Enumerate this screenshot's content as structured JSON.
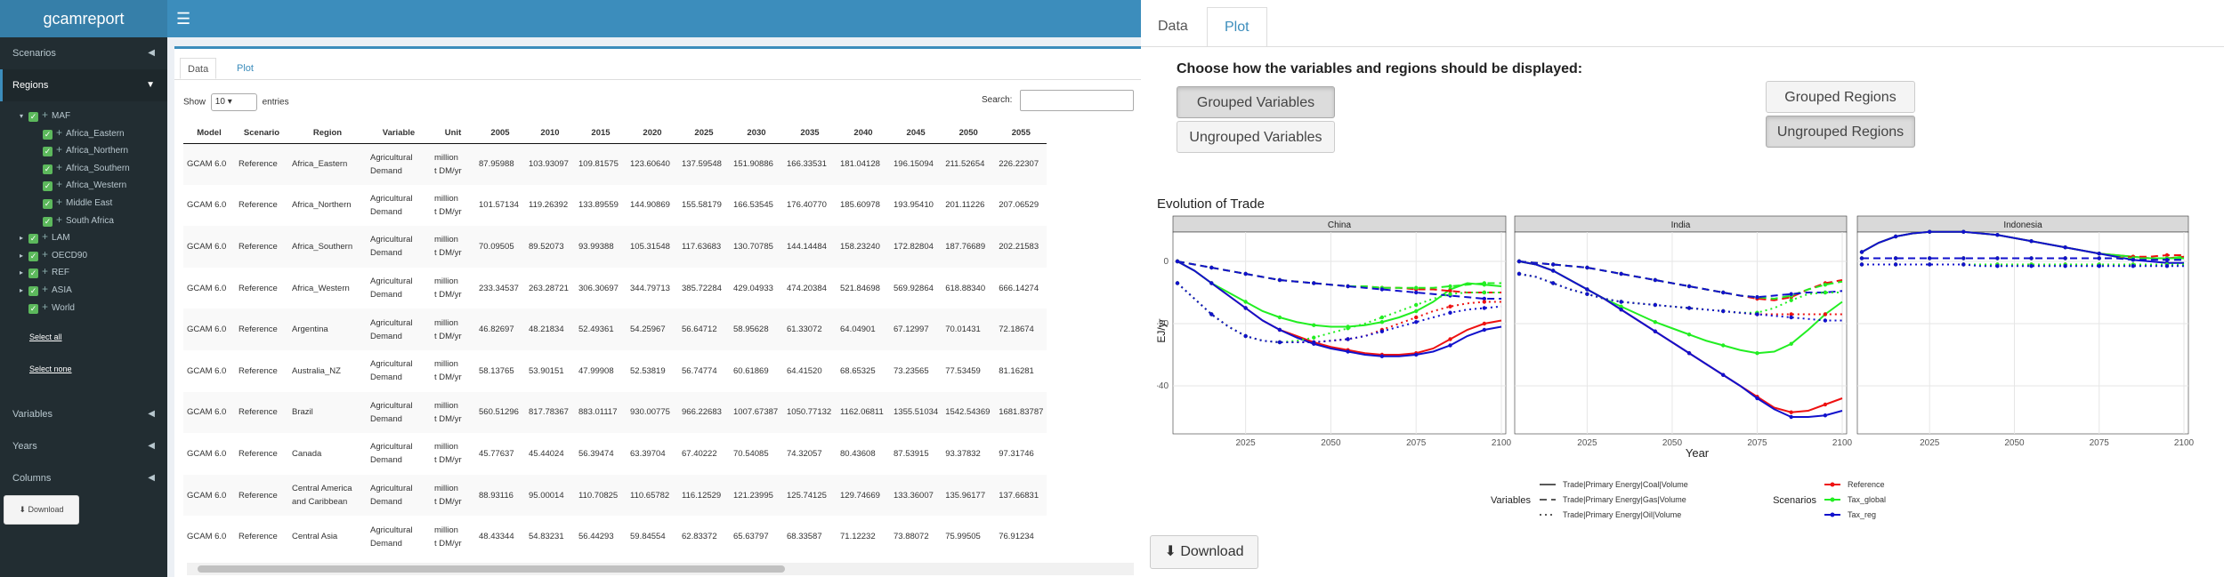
{
  "app": {
    "title": "gcamreport"
  },
  "sidebar": {
    "menus": [
      {
        "label": "Scenarios"
      },
      {
        "label": "Regions"
      },
      {
        "label": "Variables"
      },
      {
        "label": "Years"
      },
      {
        "label": "Columns"
      }
    ],
    "tree": [
      {
        "label": "MAF",
        "level": 1,
        "expanded": true
      },
      {
        "label": "Africa_Eastern",
        "level": 2
      },
      {
        "label": "Africa_Northern",
        "level": 2
      },
      {
        "label": "Africa_Southern",
        "level": 2
      },
      {
        "label": "Africa_Western",
        "level": 2
      },
      {
        "label": "Middle East",
        "level": 2
      },
      {
        "label": "South Africa",
        "level": 2
      },
      {
        "label": "LAM",
        "level": 1
      },
      {
        "label": "OECD90",
        "level": 1
      },
      {
        "label": "REF",
        "level": 1
      },
      {
        "label": "ASIA",
        "level": 1
      },
      {
        "label": "World",
        "level": 1,
        "leaf": true
      }
    ],
    "select_all": "Select all",
    "select_none": "Select none",
    "download_label": "Download"
  },
  "left_tabs": {
    "data": "Data",
    "plot": "Plot"
  },
  "table_controls": {
    "show_label": "Show",
    "show_value": "10",
    "entries_label": "entries",
    "search_label": "Search:"
  },
  "table": {
    "headers": [
      "Model",
      "Scenario",
      "Region",
      "Variable",
      "Unit",
      "2005",
      "2010",
      "2015",
      "2020",
      "2025",
      "2030",
      "2035",
      "2040",
      "2045",
      "2050",
      "2055"
    ],
    "rows": [
      [
        "GCAM 6.0",
        "Reference",
        "Africa_Eastern",
        "Agricultural\nDemand",
        "million\nt DM/yr",
        "87.95988",
        "103.93097",
        "109.81575",
        "123.60640",
        "137.59548",
        "151.90886",
        "166.33531",
        "181.04128",
        "196.15094",
        "211.52654",
        "226.22307"
      ],
      [
        "GCAM 6.0",
        "Reference",
        "Africa_Northern",
        "Agricultural\nDemand",
        "million\nt DM/yr",
        "101.57134",
        "119.26392",
        "133.89559",
        "144.90869",
        "155.58179",
        "166.53545",
        "176.40770",
        "185.60978",
        "193.95410",
        "201.11226",
        "207.06529"
      ],
      [
        "GCAM 6.0",
        "Reference",
        "Africa_Southern",
        "Agricultural\nDemand",
        "million\nt DM/yr",
        "70.09505",
        "89.52073",
        "93.99388",
        "105.31548",
        "117.63683",
        "130.70785",
        "144.14484",
        "158.23240",
        "172.82804",
        "187.76689",
        "202.21583"
      ],
      [
        "GCAM 6.0",
        "Reference",
        "Africa_Western",
        "Agricultural\nDemand",
        "million\nt DM/yr",
        "233.34537",
        "263.28721",
        "306.30697",
        "344.79713",
        "385.72284",
        "429.04933",
        "474.20384",
        "521.84698",
        "569.92864",
        "618.88340",
        "666.14274"
      ],
      [
        "GCAM 6.0",
        "Reference",
        "Argentina",
        "Agricultural\nDemand",
        "million\nt DM/yr",
        "46.82697",
        "48.21834",
        "52.49361",
        "54.25967",
        "56.64712",
        "58.95628",
        "61.33072",
        "64.04901",
        "67.12997",
        "70.01431",
        "72.18674"
      ],
      [
        "GCAM 6.0",
        "Reference",
        "Australia_NZ",
        "Agricultural\nDemand",
        "million\nt DM/yr",
        "58.13765",
        "53.90151",
        "47.99908",
        "52.53819",
        "56.74774",
        "60.61869",
        "64.41520",
        "68.65325",
        "73.23565",
        "77.53459",
        "81.16281"
      ],
      [
        "GCAM 6.0",
        "Reference",
        "Brazil",
        "Agricultural\nDemand",
        "million\nt DM/yr",
        "560.51296",
        "817.78367",
        "883.01117",
        "930.00775",
        "966.22683",
        "1007.67387",
        "1050.77132",
        "1162.06811",
        "1355.51034",
        "1542.54369",
        "1681.83787"
      ],
      [
        "GCAM 6.0",
        "Reference",
        "Canada",
        "Agricultural\nDemand",
        "million\nt DM/yr",
        "45.77637",
        "45.44024",
        "56.39474",
        "63.39704",
        "67.40222",
        "70.54085",
        "74.32057",
        "80.43608",
        "87.53915",
        "93.37832",
        "97.31746"
      ],
      [
        "GCAM 6.0",
        "Reference",
        "Central America\nand Caribbean",
        "Agricultural\nDemand",
        "million\nt DM/yr",
        "88.93116",
        "95.00014",
        "110.70825",
        "110.65782",
        "116.12529",
        "121.23995",
        "125.74125",
        "129.74669",
        "133.36007",
        "135.96177",
        "137.66831"
      ],
      [
        "GCAM 6.0",
        "Reference",
        "Central Asia",
        "Agricultural\nDemand",
        "million\nt DM/yr",
        "48.43344",
        "54.83231",
        "56.44293",
        "59.84554",
        "62.83372",
        "65.63797",
        "68.33587",
        "71.12232",
        "73.88072",
        "75.99505",
        "76.91234"
      ]
    ]
  },
  "right_tabs": {
    "data": "Data",
    "plot": "Plot"
  },
  "controls": {
    "heading": "Choose how the variables and regions should be displayed:",
    "grouped_variables": "Grouped Variables",
    "ungrouped_variables": "Ungrouped Variables",
    "grouped_regions": "Grouped Regions",
    "ungrouped_regions": "Ungrouped Regions",
    "variables_mode": "Grouped Variables",
    "regions_mode": "Ungrouped Regions"
  },
  "download_label": "Download",
  "chart_data": {
    "type": "line",
    "title": "Evolution of Trade",
    "xlabel": "Year",
    "ylabel": "EJ/yr",
    "xlim": [
      2005,
      2100
    ],
    "ylim": [
      -54,
      8
    ],
    "x_ticks": [
      2025,
      2050,
      2075,
      2100
    ],
    "y_ticks": [
      0,
      -20,
      -40
    ],
    "x": [
      2005,
      2010,
      2015,
      2020,
      2025,
      2030,
      2035,
      2040,
      2045,
      2050,
      2055,
      2060,
      2065,
      2070,
      2075,
      2080,
      2085,
      2090,
      2095,
      2100
    ],
    "facets": [
      "China",
      "India",
      "Indonesia"
    ],
    "legend_variables_title": "Variables",
    "legend_scenarios_title": "Scenarios",
    "variables": [
      {
        "name": "Trade|Primary Energy|Coal|Volume",
        "dash": "solid"
      },
      {
        "name": "Trade|Primary Energy|Gas|Volume",
        "dash": "dashed"
      },
      {
        "name": "Trade|Primary Energy|Oil|Volume",
        "dash": "dotted"
      }
    ],
    "scenarios": [
      {
        "name": "Reference",
        "color": "#ee1111"
      },
      {
        "name": "Tax_global",
        "color": "#22ee22"
      },
      {
        "name": "Tax_reg",
        "color": "#1111cc"
      }
    ],
    "series": [
      {
        "facet": "China",
        "scenario": "Reference",
        "variable": "Trade|Primary Energy|Coal|Volume",
        "values": [
          0,
          -3,
          -7,
          -11,
          -15,
          -19,
          -22,
          -24,
          -26,
          -27.5,
          -28.5,
          -29.5,
          -30,
          -30,
          -29.5,
          -28,
          -25,
          -22,
          -20,
          -19
        ]
      },
      {
        "facet": "China",
        "scenario": "Tax_global",
        "variable": "Trade|Primary Energy|Coal|Volume",
        "values": [
          0,
          -3,
          -7,
          -10,
          -13,
          -16,
          -18,
          -19.5,
          -20.5,
          -21,
          -21,
          -20.5,
          -19.5,
          -18,
          -16,
          -13,
          -9,
          -7,
          -7.5,
          -8
        ]
      },
      {
        "facet": "China",
        "scenario": "Tax_reg",
        "variable": "Trade|Primary Energy|Coal|Volume",
        "values": [
          0,
          -3,
          -7,
          -11,
          -15,
          -19,
          -22,
          -24.5,
          -26.5,
          -28,
          -29,
          -30,
          -30.5,
          -30.5,
          -30,
          -29,
          -27,
          -24,
          -22,
          -21
        ]
      },
      {
        "facet": "China",
        "scenario": "Reference",
        "variable": "Trade|Primary Energy|Gas|Volume",
        "values": [
          0,
          -1,
          -2,
          -3,
          -4,
          -5,
          -6,
          -6.5,
          -7,
          -7.5,
          -8,
          -8,
          -8.5,
          -8.5,
          -9,
          -9,
          -9.5,
          -10,
          -10,
          -10
        ]
      },
      {
        "facet": "China",
        "scenario": "Tax_global",
        "variable": "Trade|Primary Energy|Gas|Volume",
        "values": [
          0,
          -1,
          -2,
          -3,
          -4,
          -5,
          -6,
          -6.5,
          -7,
          -7.5,
          -8,
          -8,
          -8.5,
          -8.5,
          -8.5,
          -8.5,
          -8,
          -7.5,
          -7,
          -7
        ]
      },
      {
        "facet": "China",
        "scenario": "Tax_reg",
        "variable": "Trade|Primary Energy|Gas|Volume",
        "values": [
          0,
          -1,
          -2,
          -3,
          -4,
          -5,
          -6,
          -6.5,
          -7,
          -7.5,
          -8,
          -8.5,
          -9,
          -9.5,
          -10,
          -10.5,
          -11,
          -11.5,
          -12,
          -12
        ]
      },
      {
        "facet": "China",
        "scenario": "Reference",
        "variable": "Trade|Primary Energy|Oil|Volume",
        "values": [
          -7,
          -12,
          -17,
          -21,
          -24,
          -25.5,
          -26,
          -26,
          -26,
          -25.5,
          -25,
          -24,
          -22,
          -20,
          -18,
          -16,
          -14.5,
          -13.5,
          -13,
          -13
        ]
      },
      {
        "facet": "China",
        "scenario": "Tax_global",
        "variable": "Trade|Primary Energy|Oil|Volume",
        "values": [
          -7,
          -12,
          -17,
          -21,
          -24,
          -25.5,
          -26,
          -25.5,
          -24.5,
          -23,
          -21.5,
          -20,
          -18,
          -16,
          -14,
          -12,
          -10.5,
          -10,
          -10,
          -10
        ]
      },
      {
        "facet": "China",
        "scenario": "Tax_reg",
        "variable": "Trade|Primary Energy|Oil|Volume",
        "values": [
          -7,
          -12,
          -17,
          -21,
          -24,
          -25.5,
          -26,
          -26,
          -26,
          -25.5,
          -25,
          -24,
          -22.5,
          -21,
          -19.5,
          -18,
          -16.5,
          -15.5,
          -15,
          -14.5
        ]
      },
      {
        "facet": "India",
        "scenario": "Reference",
        "variable": "Trade|Primary Energy|Coal|Volume",
        "values": [
          0,
          -1,
          -3,
          -6,
          -9,
          -12,
          -15.5,
          -19,
          -22.5,
          -26,
          -29.5,
          -33,
          -36.5,
          -40,
          -43.5,
          -47,
          -48.5,
          -48,
          -46,
          -44
        ]
      },
      {
        "facet": "India",
        "scenario": "Tax_global",
        "variable": "Trade|Primary Energy|Coal|Volume",
        "values": [
          0,
          -1,
          -3,
          -6,
          -9,
          -12,
          -14.5,
          -17,
          -19.5,
          -21.5,
          -23.5,
          -25.5,
          -27,
          -28.5,
          -29.5,
          -29,
          -26.5,
          -22,
          -17,
          -13
        ]
      },
      {
        "facet": "India",
        "scenario": "Tax_reg",
        "variable": "Trade|Primary Energy|Coal|Volume",
        "values": [
          0,
          -1,
          -3,
          -6,
          -9,
          -12,
          -15.5,
          -19,
          -22.5,
          -26,
          -29.5,
          -33,
          -36.5,
          -40,
          -44,
          -47.5,
          -50,
          -50,
          -49.5,
          -48
        ]
      },
      {
        "facet": "India",
        "scenario": "Reference",
        "variable": "Trade|Primary Energy|Gas|Volume",
        "values": [
          0,
          -0.5,
          -1,
          -1.5,
          -2,
          -3,
          -4,
          -5,
          -6,
          -7,
          -8,
          -9,
          -10,
          -11,
          -12,
          -12.5,
          -11.5,
          -9,
          -7,
          -6
        ]
      },
      {
        "facet": "India",
        "scenario": "Tax_global",
        "variable": "Trade|Primary Energy|Gas|Volume",
        "values": [
          0,
          -0.5,
          -1,
          -1.5,
          -2,
          -3,
          -4,
          -5,
          -6,
          -7,
          -8,
          -9,
          -10,
          -11,
          -11.5,
          -12,
          -11,
          -9,
          -7.5,
          -6.5
        ]
      },
      {
        "facet": "India",
        "scenario": "Tax_reg",
        "variable": "Trade|Primary Energy|Gas|Volume",
        "values": [
          0,
          -0.5,
          -1,
          -1.5,
          -2,
          -3,
          -4,
          -5,
          -6,
          -7,
          -8,
          -9,
          -10,
          -11,
          -11.5,
          -11,
          -10.5,
          -10,
          -10,
          -9.5
        ]
      },
      {
        "facet": "India",
        "scenario": "Reference",
        "variable": "Trade|Primary Energy|Oil|Volume",
        "values": [
          -4,
          -5,
          -7,
          -9,
          -10.5,
          -12,
          -13,
          -13.5,
          -14,
          -14.5,
          -15,
          -15.5,
          -16,
          -16.5,
          -17,
          -17,
          -17,
          -17,
          -17,
          -17
        ]
      },
      {
        "facet": "India",
        "scenario": "Tax_global",
        "variable": "Trade|Primary Energy|Oil|Volume",
        "values": [
          -4,
          -5,
          -7,
          -9,
          -10.5,
          -12,
          -13,
          -13.5,
          -14,
          -14.5,
          -15,
          -15.5,
          -16,
          -16.5,
          -16.5,
          -15,
          -12.5,
          -10.5,
          -10,
          -10
        ]
      },
      {
        "facet": "India",
        "scenario": "Tax_reg",
        "variable": "Trade|Primary Energy|Oil|Volume",
        "values": [
          -4,
          -5,
          -7,
          -9,
          -10.5,
          -12,
          -13,
          -13.5,
          -14,
          -14.5,
          -15,
          -15.5,
          -16,
          -16.5,
          -17,
          -17.5,
          -18,
          -18.5,
          -19,
          -19
        ]
      },
      {
        "facet": "Indonesia",
        "scenario": "Reference",
        "variable": "Trade|Primary Energy|Coal|Volume",
        "values": [
          3,
          6,
          8,
          9,
          9.5,
          9.5,
          9.5,
          9,
          8.5,
          7.5,
          6.5,
          5.5,
          4.5,
          3.5,
          2.5,
          2,
          1.5,
          1,
          1,
          1.5
        ]
      },
      {
        "facet": "Indonesia",
        "scenario": "Tax_global",
        "variable": "Trade|Primary Energy|Coal|Volume",
        "values": [
          3,
          6,
          8,
          9,
          9.5,
          9.5,
          9.5,
          9,
          8.5,
          7.5,
          6.5,
          5.5,
          4.5,
          3.5,
          2.5,
          2,
          1.5,
          1,
          1,
          1
        ]
      },
      {
        "facet": "Indonesia",
        "scenario": "Tax_reg",
        "variable": "Trade|Primary Energy|Coal|Volume",
        "values": [
          3,
          6,
          8,
          9,
          9.5,
          9.5,
          9.5,
          9,
          8.5,
          7.5,
          6.5,
          5.5,
          4.5,
          3.5,
          2.5,
          1.5,
          0.5,
          0,
          -0.5,
          -0.5
        ]
      },
      {
        "facet": "Indonesia",
        "scenario": "Reference",
        "variable": "Trade|Primary Energy|Gas|Volume",
        "values": [
          1,
          1,
          1,
          1,
          1,
          1,
          1,
          1,
          1,
          1,
          1,
          1,
          1,
          1,
          1,
          1,
          1.5,
          1.5,
          2,
          2
        ]
      },
      {
        "facet": "Indonesia",
        "scenario": "Tax_global",
        "variable": "Trade|Primary Energy|Gas|Volume",
        "values": [
          1,
          1,
          1,
          1,
          1,
          1,
          1,
          1,
          1,
          1,
          1,
          1,
          1,
          1,
          1,
          1,
          1,
          1,
          1,
          1.5
        ]
      },
      {
        "facet": "Indonesia",
        "scenario": "Tax_reg",
        "variable": "Trade|Primary Energy|Gas|Volume",
        "values": [
          1,
          1,
          1,
          1,
          1,
          1,
          1,
          1,
          1,
          1,
          1,
          1,
          1,
          1,
          1,
          1,
          0.5,
          0.5,
          0.5,
          0.5
        ]
      },
      {
        "facet": "Indonesia",
        "scenario": "Reference",
        "variable": "Trade|Primary Energy|Oil|Volume",
        "values": [
          -1,
          -1,
          -1,
          -1,
          -1,
          -1,
          -1,
          -1,
          -1,
          -1,
          -1,
          -1,
          -1,
          -1,
          -1,
          -1,
          -1,
          -1,
          -1,
          -1
        ]
      },
      {
        "facet": "Indonesia",
        "scenario": "Tax_global",
        "variable": "Trade|Primary Energy|Oil|Volume",
        "values": [
          -1,
          -1,
          -1,
          -1,
          -1,
          -1,
          -1,
          -1,
          -1,
          -1,
          -1,
          -1,
          -1,
          -1,
          -1,
          -1,
          -1,
          -1,
          -1,
          -1
        ]
      },
      {
        "facet": "Indonesia",
        "scenario": "Tax_reg",
        "variable": "Trade|Primary Energy|Oil|Volume",
        "values": [
          -1,
          -1,
          -1,
          -1,
          -1,
          -1,
          -1,
          -1.5,
          -1.5,
          -1.5,
          -1.5,
          -1.5,
          -1.5,
          -1.5,
          -1.5,
          -1.5,
          -1.5,
          -1.5,
          -1.5,
          -1.5
        ]
      }
    ]
  }
}
